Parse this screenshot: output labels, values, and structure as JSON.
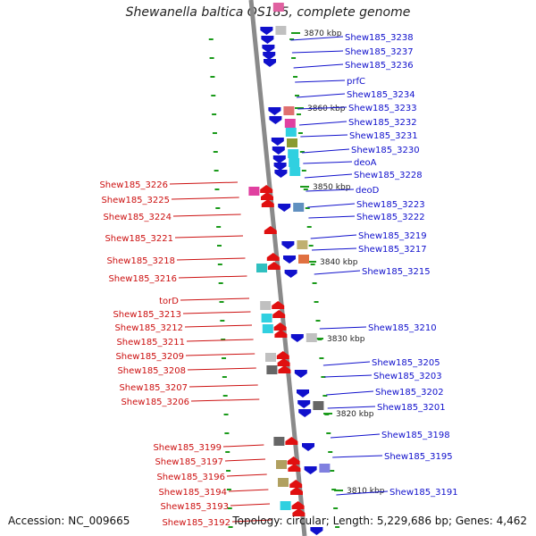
{
  "title": "Shewanella baltica OS185, complete genome",
  "footer": {
    "accession": "Accession: NC_009665",
    "summary": "Topology: circular; Length: 5,229,686 bp; Genes: 4,462"
  },
  "colors": {
    "backbone": "#8a8a8a",
    "forward_gene": "#1010cc",
    "reverse_gene": "#e01010",
    "tick": "#1a9a1a",
    "right_label": "#1010cc",
    "left_label": "#cc1010"
  },
  "scale_ticks": [
    "3870 kbp",
    "3860 kbp",
    "3850 kbp",
    "3840 kbp",
    "3830 kbp",
    "3820 kbp",
    "3810 kbp"
  ],
  "right_labels": [
    "Shew185_3238",
    "Shew185_3237",
    "Shew185_3236",
    "prfC",
    "Shew185_3234",
    "Shew185_3233",
    "Shew185_3232",
    "Shew185_3231",
    "Shew185_3230",
    "deoA",
    "Shew185_3228",
    "deoD",
    "Shew185_3223",
    "Shew185_3222",
    "Shew185_3219",
    "Shew185_3217",
    "Shew185_3215",
    "Shew185_3210",
    "Shew185_3205",
    "Shew185_3203",
    "Shew185_3202",
    "Shew185_3201",
    "Shew185_3198",
    "Shew185_3195",
    "Shew185_3191"
  ],
  "left_labels": [
    "Shew185_3226",
    "Shew185_3225",
    "Shew185_3224",
    "Shew185_3221",
    "Shew185_3218",
    "Shew185_3216",
    "torD",
    "Shew185_3213",
    "Shew185_3212",
    "Shew185_3211",
    "Shew185_3209",
    "Shew185_3208",
    "Shew185_3207",
    "Shew185_3206",
    "Shew185_3199",
    "Shew185_3197",
    "Shew185_3196",
    "Shew185_3194",
    "Shew185_3193",
    "Shew185_3192"
  ]
}
